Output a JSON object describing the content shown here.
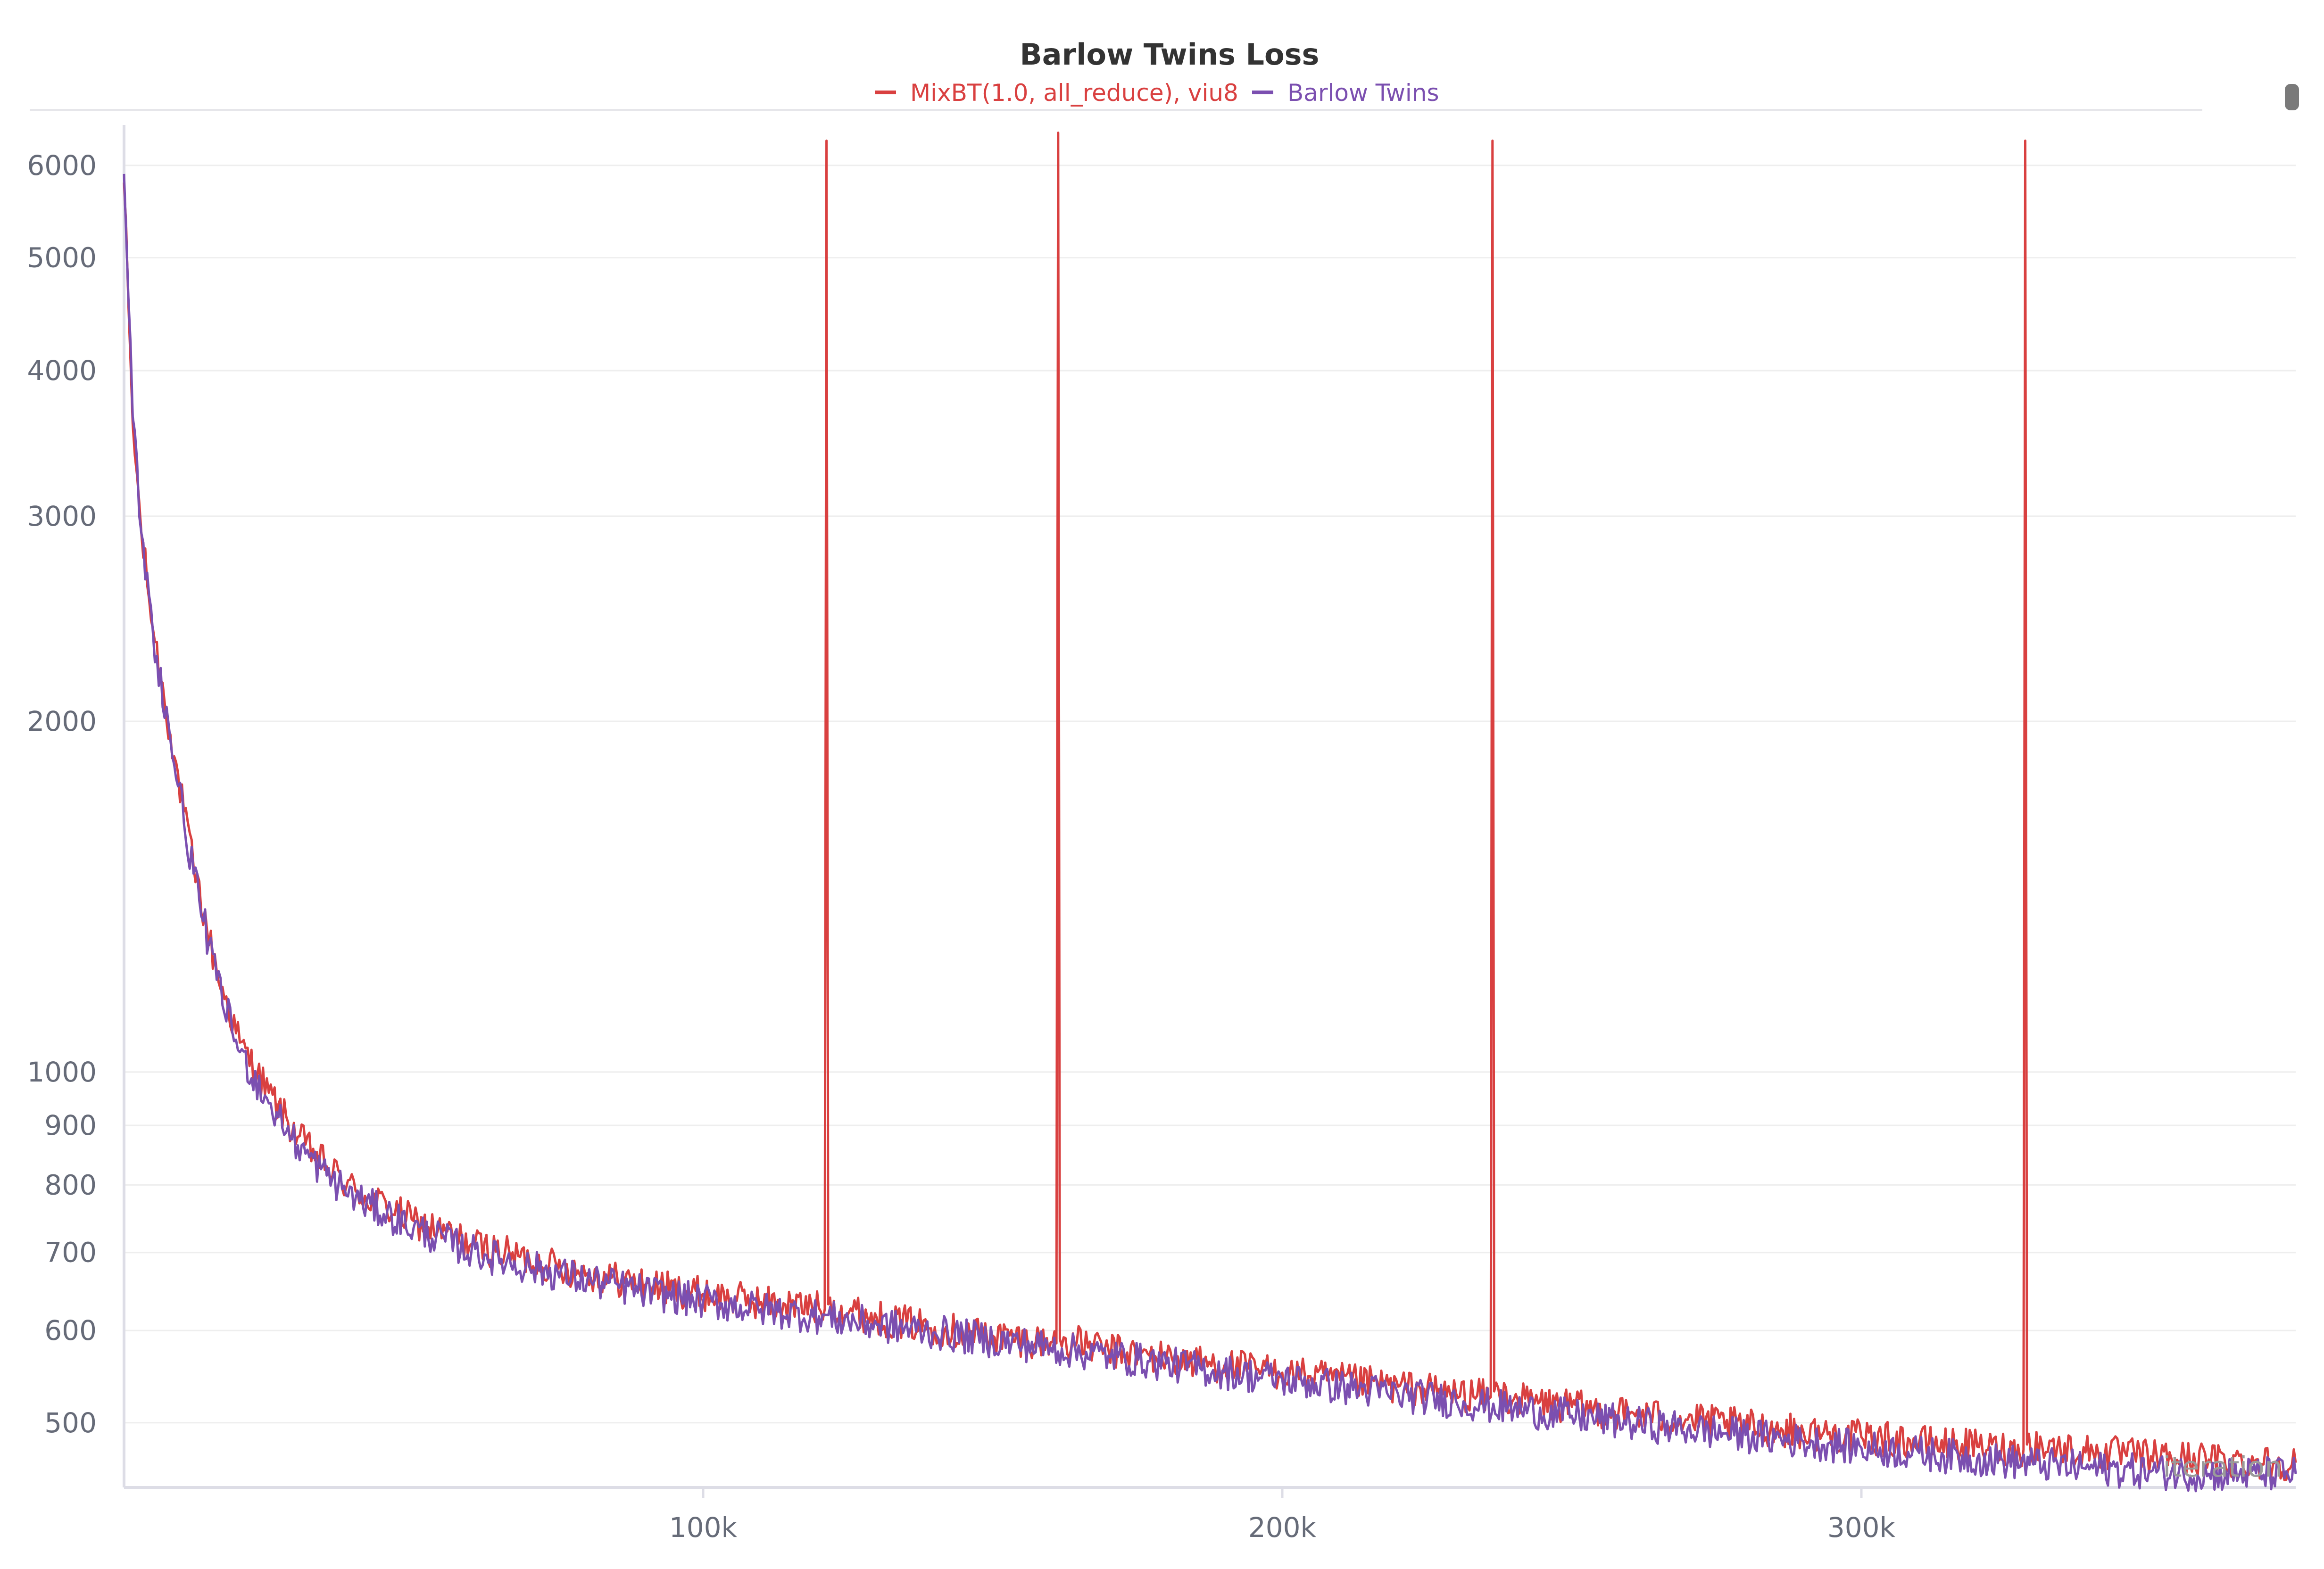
{
  "chart_data": {
    "type": "line",
    "title": "Barlow Twins Loss",
    "xlabel": "iteration",
    "ylabel": "",
    "yscale": "log",
    "xlim": [
      0,
      375000
    ],
    "ylim": [
      440,
      6500
    ],
    "x_ticks": [
      {
        "value": 100000,
        "label": "100k"
      },
      {
        "value": 200000,
        "label": "200k"
      },
      {
        "value": 300000,
        "label": "300k"
      }
    ],
    "y_ticks": [
      {
        "value": 6000,
        "label": "6000"
      },
      {
        "value": 5000,
        "label": "5000"
      },
      {
        "value": 4000,
        "label": "4000"
      },
      {
        "value": 3000,
        "label": "3000"
      },
      {
        "value": 2000,
        "label": "2000"
      },
      {
        "value": 1000,
        "label": "1000"
      },
      {
        "value": 900,
        "label": "900"
      },
      {
        "value": 800,
        "label": "800"
      },
      {
        "value": 700,
        "label": "700"
      },
      {
        "value": 600,
        "label": "600"
      },
      {
        "value": 500,
        "label": "500"
      }
    ],
    "grid": true,
    "legend_position": "top-center",
    "series": [
      {
        "name": "MixBT(1.0, all_reduce), viu8",
        "color": "#d94040",
        "x": [
          0,
          1500,
          3000,
          5000,
          8000,
          12000,
          16000,
          20000,
          25000,
          30000,
          35000,
          40000,
          50000,
          60000,
          70000,
          80000,
          90000,
          100000,
          110000,
          120000,
          121000,
          121300,
          121600,
          130000,
          140000,
          150000,
          160000,
          161000,
          161300,
          161600,
          170000,
          180000,
          190000,
          200000,
          210000,
          220000,
          230000,
          236000,
          236300,
          236600,
          240000,
          250000,
          260000,
          270000,
          280000,
          290000,
          300000,
          310000,
          320000,
          328000,
          328300,
          328600,
          340000,
          350000,
          360000,
          375000
        ],
        "y": [
          5800,
          3600,
          2900,
          2400,
          1950,
          1500,
          1220,
          1060,
          960,
          880,
          830,
          790,
          745,
          712,
          690,
          672,
          657,
          645,
          635,
          627,
          626,
          6300,
          632,
          615,
          604,
          594,
          586,
          585,
          6400,
          590,
          577,
          568,
          560,
          552,
          544,
          537,
          530,
          526,
          6300,
          532,
          524,
          516,
          509,
          503,
          497,
          491,
          486,
          481,
          477,
          474,
          6300,
          479,
          472,
          468,
          465,
          462
        ]
      },
      {
        "name": "Barlow Twins",
        "color": "#7b4fb0",
        "x": [
          0,
          1500,
          3000,
          5000,
          8000,
          12000,
          16000,
          20000,
          25000,
          30000,
          35000,
          40000,
          50000,
          60000,
          70000,
          80000,
          90000,
          100000,
          110000,
          120000,
          130000,
          140000,
          150000,
          160000,
          170000,
          180000,
          190000,
          200000,
          210000,
          220000,
          230000,
          240000,
          250000,
          260000,
          270000,
          280000,
          290000,
          300000,
          310000,
          320000,
          330000,
          340000,
          350000,
          360000,
          375000
        ],
        "y": [
          5900,
          3650,
          2900,
          2380,
          1930,
          1480,
          1200,
          1040,
          940,
          865,
          815,
          780,
          735,
          702,
          680,
          663,
          648,
          636,
          626,
          617,
          607,
          598,
          589,
          580,
          571,
          562,
          553,
          545,
          537,
          529,
          522,
          514,
          507,
          500,
          494,
          488,
          482,
          476,
          471,
          466,
          461,
          457,
          454,
          452,
          452
        ]
      }
    ]
  }
}
